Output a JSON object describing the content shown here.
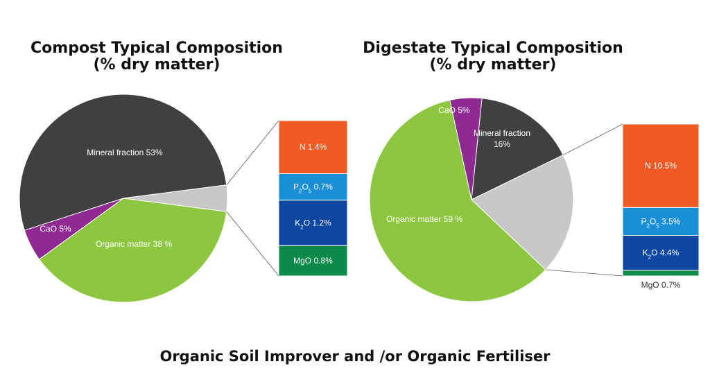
{
  "footer": "Organic Soil Improver and /or Organic Fertiliser",
  "chart_data": [
    {
      "type": "pie",
      "title_lines": [
        "Compost Typical Composition",
        "(% dry matter)"
      ],
      "slices": [
        {
          "label": "Mineral fraction 53%",
          "value": 53,
          "color": "#404043",
          "label_color": "#ffffff"
        },
        {
          "label": "",
          "value": 4.1,
          "color": "#c8c8c8",
          "label_color": "#333333"
        },
        {
          "label": "Organic matter 38 %",
          "value": 38,
          "color": "#8dc63f",
          "label_color": "#ffffff"
        },
        {
          "label": "CaO 5%",
          "value": 5,
          "color": "#8e2a92",
          "label_color": "#ffffff"
        }
      ],
      "breakdown": {
        "parts": [
          {
            "label_main": "N",
            "label_sub": "",
            "label_rest": " 1.4%",
            "value": 1.4,
            "color": "#f15a24",
            "label_color": "#ffffff",
            "label_inside": true
          },
          {
            "label_main": "P",
            "label_sub": "2",
            "label_mid": "O",
            "label_sub2": "5",
            "label_rest": " 0.7%",
            "value": 0.7,
            "color": "#1b8ed8",
            "label_color": "#ffffff",
            "label_inside": true
          },
          {
            "label_main": "K",
            "label_sub": "2",
            "label_rest": "O 1.2%",
            "value": 1.2,
            "color": "#0d47a1",
            "label_color": "#ffffff",
            "label_inside": true
          },
          {
            "label_main": "MgO",
            "label_sub": "",
            "label_rest": " 0.8%",
            "value": 0.8,
            "color": "#0b8a4a",
            "label_color": "#ffffff",
            "label_inside": true
          }
        ]
      }
    },
    {
      "type": "pie",
      "title_lines": [
        "Digestate Typical Composition",
        "(% dry matter)"
      ],
      "slices": [
        {
          "label": "Mineral fraction|16%",
          "value": 16,
          "color": "#404043",
          "label_color": "#ffffff"
        },
        {
          "label": "",
          "value": 19.1,
          "color": "#c8c8c8",
          "label_color": "#333333"
        },
        {
          "label": "Organic matter 59 %",
          "value": 59,
          "color": "#8dc63f",
          "label_color": "#ffffff"
        },
        {
          "label": "CaO 5%",
          "value": 5,
          "color": "#8e2a92",
          "label_color": "#ffffff"
        }
      ],
      "breakdown": {
        "parts": [
          {
            "label_main": "N",
            "label_sub": "",
            "label_rest": " 10.5%",
            "value": 10.5,
            "color": "#f15a24",
            "label_color": "#ffffff",
            "label_inside": true
          },
          {
            "label_main": "P",
            "label_sub": "2",
            "label_mid": "O",
            "label_sub2": "5",
            "label_rest": " 3.5%",
            "value": 3.5,
            "color": "#1b8ed8",
            "label_color": "#ffffff",
            "label_inside": true
          },
          {
            "label_main": "K",
            "label_sub": "2",
            "label_rest": "O 4.4%",
            "value": 4.4,
            "color": "#0d47a1",
            "label_color": "#ffffff",
            "label_inside": true
          },
          {
            "label_main": "MgO",
            "label_sub": "",
            "label_rest": " 0.7%",
            "value": 0.7,
            "color": "#0b8a4a",
            "label_color": "#333333",
            "label_inside": false
          }
        ]
      }
    }
  ]
}
